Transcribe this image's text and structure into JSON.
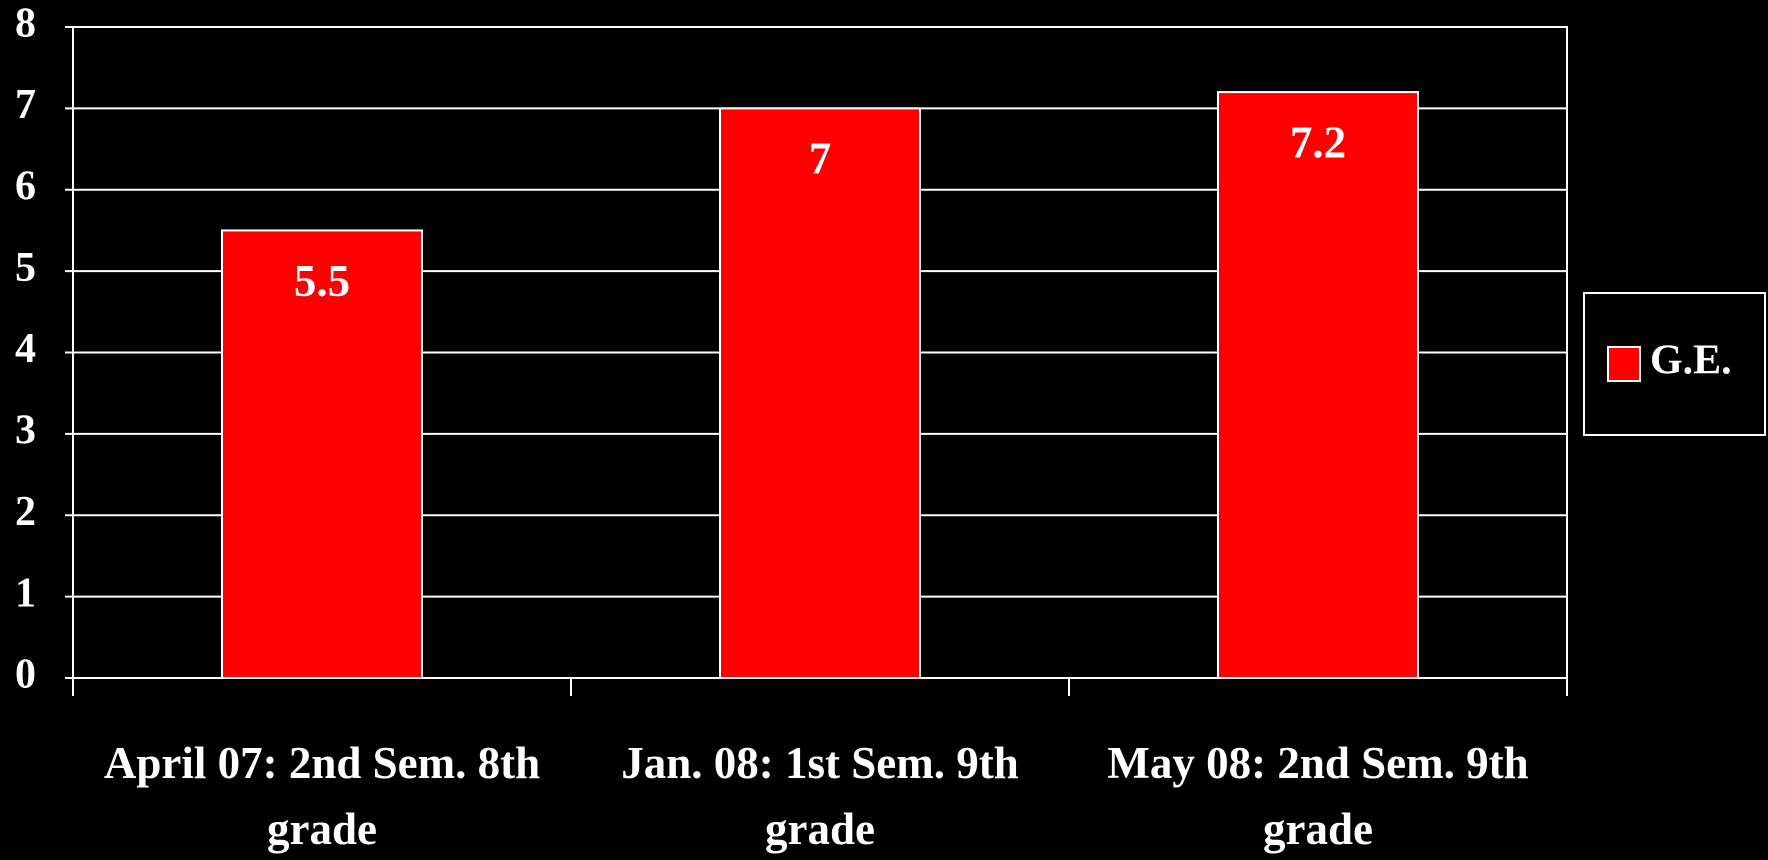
{
  "chart_data": {
    "type": "bar",
    "categories": [
      "April 07: 2nd Sem. 8th grade",
      "Jan. 08: 1st Sem. 9th grade",
      "May 08: 2nd Sem. 9th grade"
    ],
    "series": [
      {
        "name": "G.E.",
        "color": "#ff0000",
        "values": [
          5.5,
          7,
          7.2
        ]
      }
    ],
    "ylim": [
      0,
      8
    ],
    "yticks": [
      0,
      1,
      2,
      3,
      4,
      5,
      6,
      7,
      8
    ],
    "grid": true,
    "legend": "right"
  }
}
